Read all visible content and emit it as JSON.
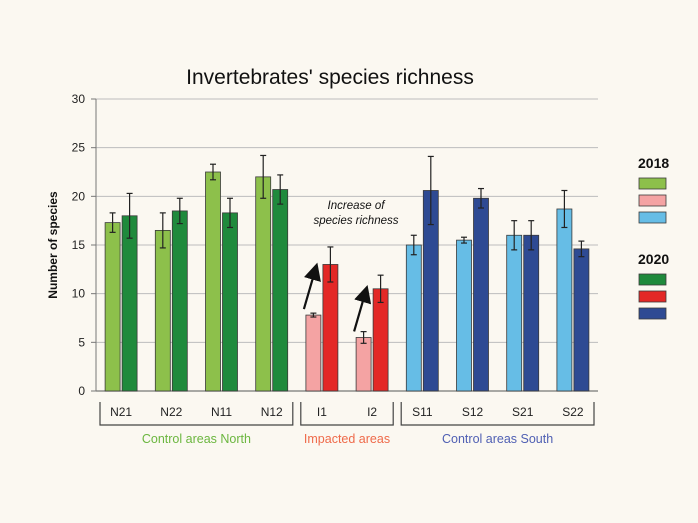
{
  "chart_data": {
    "type": "bar",
    "title": "Invertebrates' species richness",
    "ylabel": "Number of species",
    "xlabel": "",
    "ylim": [
      0,
      30
    ],
    "yticks": [
      0,
      5,
      10,
      15,
      20,
      25,
      30
    ],
    "grid": true,
    "legend_position": "right",
    "categories": [
      "N21",
      "N22",
      "N11",
      "N12",
      "I1",
      "I2",
      "S11",
      "S12",
      "S21",
      "S22"
    ],
    "series": [
      {
        "name": "2018",
        "values": [
          17.3,
          16.5,
          22.5,
          22.0,
          7.8,
          5.5,
          15.0,
          15.5,
          16.0,
          18.7
        ],
        "errors": [
          1.0,
          1.8,
          0.8,
          2.2,
          0.2,
          0.6,
          1.0,
          0.3,
          1.5,
          1.9
        ]
      },
      {
        "name": "2020",
        "values": [
          18.0,
          18.5,
          18.3,
          20.7,
          13.0,
          10.5,
          20.6,
          19.8,
          16.0,
          14.6
        ],
        "errors": [
          2.3,
          1.3,
          1.5,
          1.5,
          1.8,
          1.4,
          3.5,
          1.0,
          1.5,
          0.8
        ]
      }
    ],
    "groups": [
      {
        "label": "Control areas North",
        "start": 0,
        "end": 3,
        "color_2018": "#8dc04b",
        "color_2020": "#1f8a3c",
        "label_color": "#6bb63f"
      },
      {
        "label": "Impacted areas",
        "start": 4,
        "end": 5,
        "color_2018": "#f4a3a3",
        "color_2020": "#e32826",
        "label_color": "#ef6a4a"
      },
      {
        "label": "Control areas South",
        "start": 6,
        "end": 9,
        "color_2018": "#66bde6",
        "color_2020": "#2e4a93",
        "label_color": "#4f5fb3"
      }
    ],
    "annotation": {
      "text_lines": [
        "Increase of",
        "species richness"
      ],
      "arrow_categories": [
        "I1",
        "I2"
      ]
    },
    "legend": [
      {
        "year": "2018",
        "colors": [
          "#8dc04b",
          "#f4a3a3",
          "#66bde6"
        ]
      },
      {
        "year": "2020",
        "colors": [
          "#1f8a3c",
          "#e32826",
          "#2e4a93"
        ]
      }
    ]
  }
}
